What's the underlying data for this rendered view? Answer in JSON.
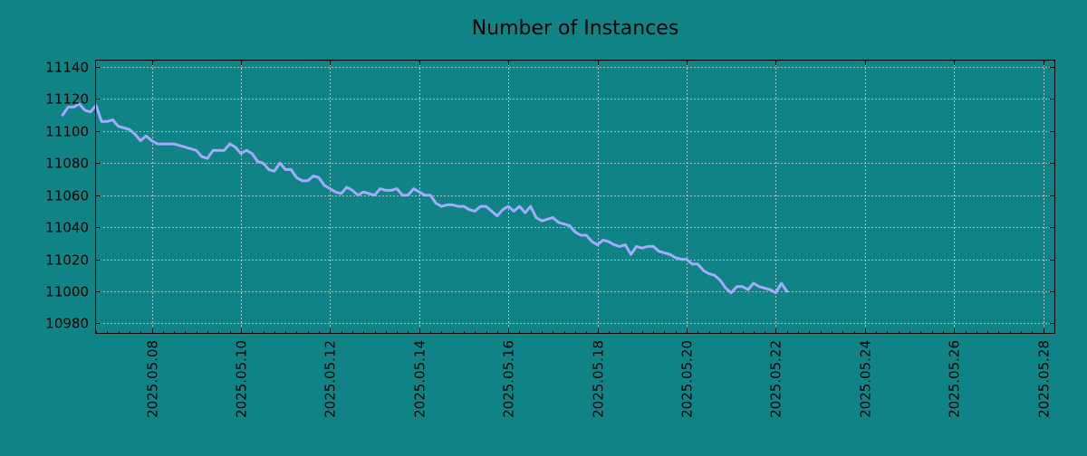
{
  "chart_data": {
    "type": "line",
    "title": "Number of Instances",
    "xlabel": "",
    "ylabel": "",
    "x_start": "2025-05-06",
    "x_step_days": 0.125,
    "x_range": [
      "2025-05-06T18:00",
      "2025-05-28T06:00"
    ],
    "ylim": [
      10974,
      11144
    ],
    "x_ticks": [
      "2025.05.08",
      "2025.05.10",
      "2025.05.12",
      "2025.05.14",
      "2025.05.16",
      "2025.05.18",
      "2025.05.20",
      "2025.05.22",
      "2025.05.24",
      "2025.05.26",
      "2025.05.28"
    ],
    "y_ticks": [
      10980,
      11000,
      11020,
      11040,
      11060,
      11080,
      11100,
      11120,
      11140
    ],
    "grid": true,
    "colors": {
      "background": "#108386",
      "line": "#a3aaff",
      "grid": "#c8d8d8",
      "axis": "#000000"
    },
    "series": [
      {
        "values": [
          11110,
          11115,
          11115,
          11117,
          11113,
          11112,
          11116,
          11106,
          11106,
          11107,
          11103,
          11102,
          11101,
          11098,
          11094,
          11097,
          11094,
          11092,
          11092,
          11092,
          11092,
          11091,
          11090,
          11089,
          11088,
          11084,
          11083,
          11088,
          11088,
          11088,
          11092,
          11090,
          11086,
          11088,
          11086,
          11081,
          11080,
          11076,
          11075,
          11080,
          11076,
          11076,
          11071,
          11069,
          11069,
          11072,
          11071,
          11066,
          11064,
          11062,
          11061,
          11065,
          11063,
          11060,
          11062,
          11061,
          11060,
          11064,
          11063,
          11063,
          11064,
          11060,
          11060,
          11064,
          11062,
          11060,
          11060,
          11055,
          11053,
          11054,
          11054,
          11053,
          11053,
          11051,
          11050,
          11053,
          11053,
          11050,
          11047,
          11051,
          11053,
          11050,
          11053,
          11049,
          11053,
          11046,
          11044,
          11045,
          11046,
          11043,
          11042,
          11041,
          11037,
          11035,
          11035,
          11031,
          11029,
          11032,
          11031,
          11029,
          11028,
          11029,
          11023,
          11028,
          11027,
          11028,
          11028,
          11025,
          11024,
          11023,
          11021,
          11020,
          11020,
          11017,
          11017,
          11013,
          11011,
          11010,
          11007,
          11002,
          10999,
          11003,
          11003,
          11001,
          11005,
          11003,
          11002,
          11001,
          10999,
          11005,
          11000
        ]
      }
    ]
  }
}
